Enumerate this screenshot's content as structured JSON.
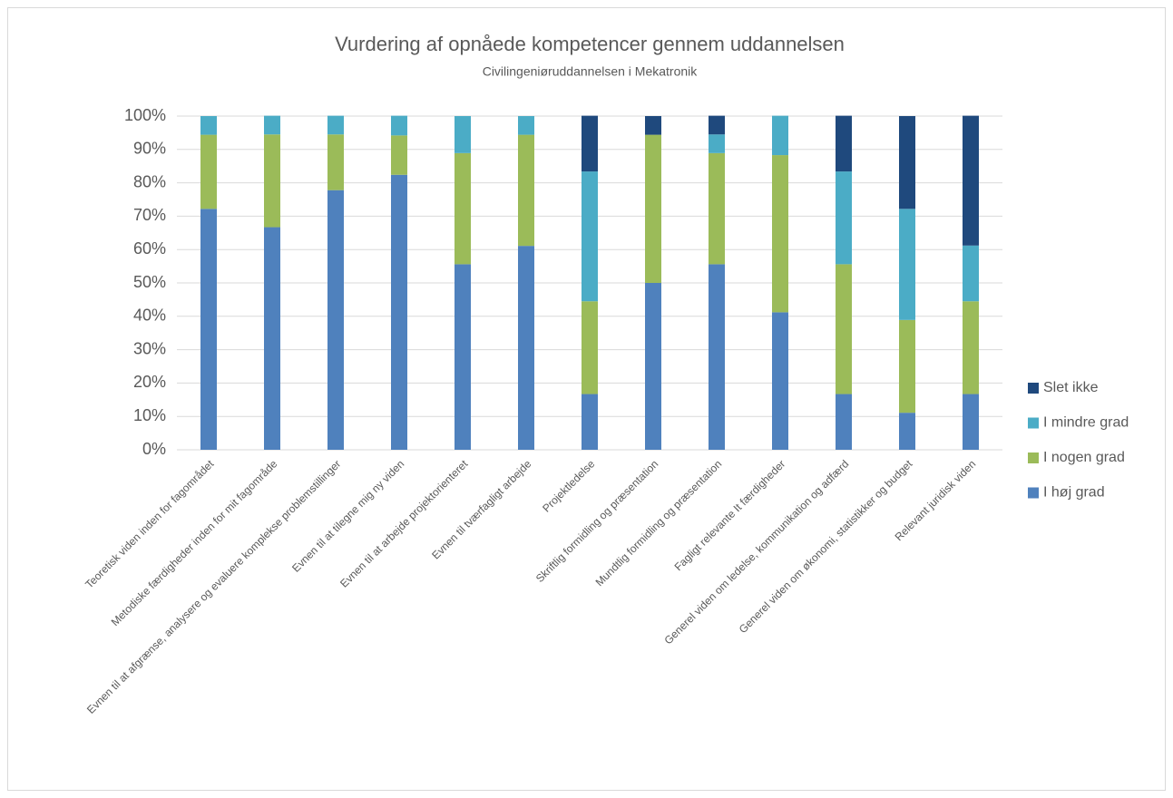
{
  "chart_data": {
    "type": "stacked_bar",
    "title": "Vurdering af opnåede kompetencer gennem uddannelsen",
    "subtitle": "Civilingeniøruddannelsen i Mekatronik",
    "categories": [
      "Teoretisk viden inden for fagområdet",
      "Metodiske færdigheder inden for mit fagområde",
      "Evnen til at afgrænse, analysere og evaluere komplekse problemstillinger",
      "Evnen til at tilegne mig ny viden",
      "Evnen til at arbejde projektorienteret",
      "Evnen til tværfagligt arbejde",
      "Projektledelse",
      "Skriftlig formidling og præsentation",
      "Mundtlig formidling og præsentation",
      "Fagligt relevante It færdigheder",
      "Generel viden om ledelse, kommunikation og adfærd",
      "Generel viden om økonomi, statistikker og budget",
      "Relevant juridisk viden"
    ],
    "series": [
      {
        "name": "I høj grad",
        "color": "#4f81bd",
        "values": [
          72.2,
          66.7,
          77.8,
          82.4,
          55.6,
          61.1,
          16.7,
          50,
          55.6,
          41.2,
          16.7,
          11.1,
          16.7
        ]
      },
      {
        "name": "I nogen grad",
        "color": "#9bbb59",
        "values": [
          22.2,
          27.8,
          16.7,
          11.8,
          33.3,
          33.3,
          27.8,
          44.4,
          33.3,
          47.1,
          38.9,
          27.8,
          27.8
        ]
      },
      {
        "name": "I mindre grad",
        "color": "#4bacc6",
        "values": [
          5.6,
          5.6,
          5.6,
          5.9,
          11.1,
          5.6,
          38.9,
          0,
          5.6,
          11.8,
          27.8,
          33.3,
          16.7
        ]
      },
      {
        "name": "Slet ikke",
        "color": "#1f497d",
        "values": [
          0,
          0,
          0,
          0,
          0,
          0,
          16.7,
          5.6,
          5.6,
          0,
          16.7,
          27.8,
          38.9
        ]
      }
    ],
    "ylim": [
      0,
      100
    ],
    "yticks": [
      {
        "value": 0,
        "label": "0%"
      },
      {
        "value": 10,
        "label": "10%"
      },
      {
        "value": 20,
        "label": "20%"
      },
      {
        "value": 30,
        "label": "30%"
      },
      {
        "value": 40,
        "label": "40%"
      },
      {
        "value": 50,
        "label": "50%"
      },
      {
        "value": 60,
        "label": "60%"
      },
      {
        "value": 70,
        "label": "70%"
      },
      {
        "value": 80,
        "label": "80%"
      },
      {
        "value": 90,
        "label": "90%"
      },
      {
        "value": 100,
        "label": "100%"
      }
    ],
    "grid": true,
    "legend": "right"
  }
}
